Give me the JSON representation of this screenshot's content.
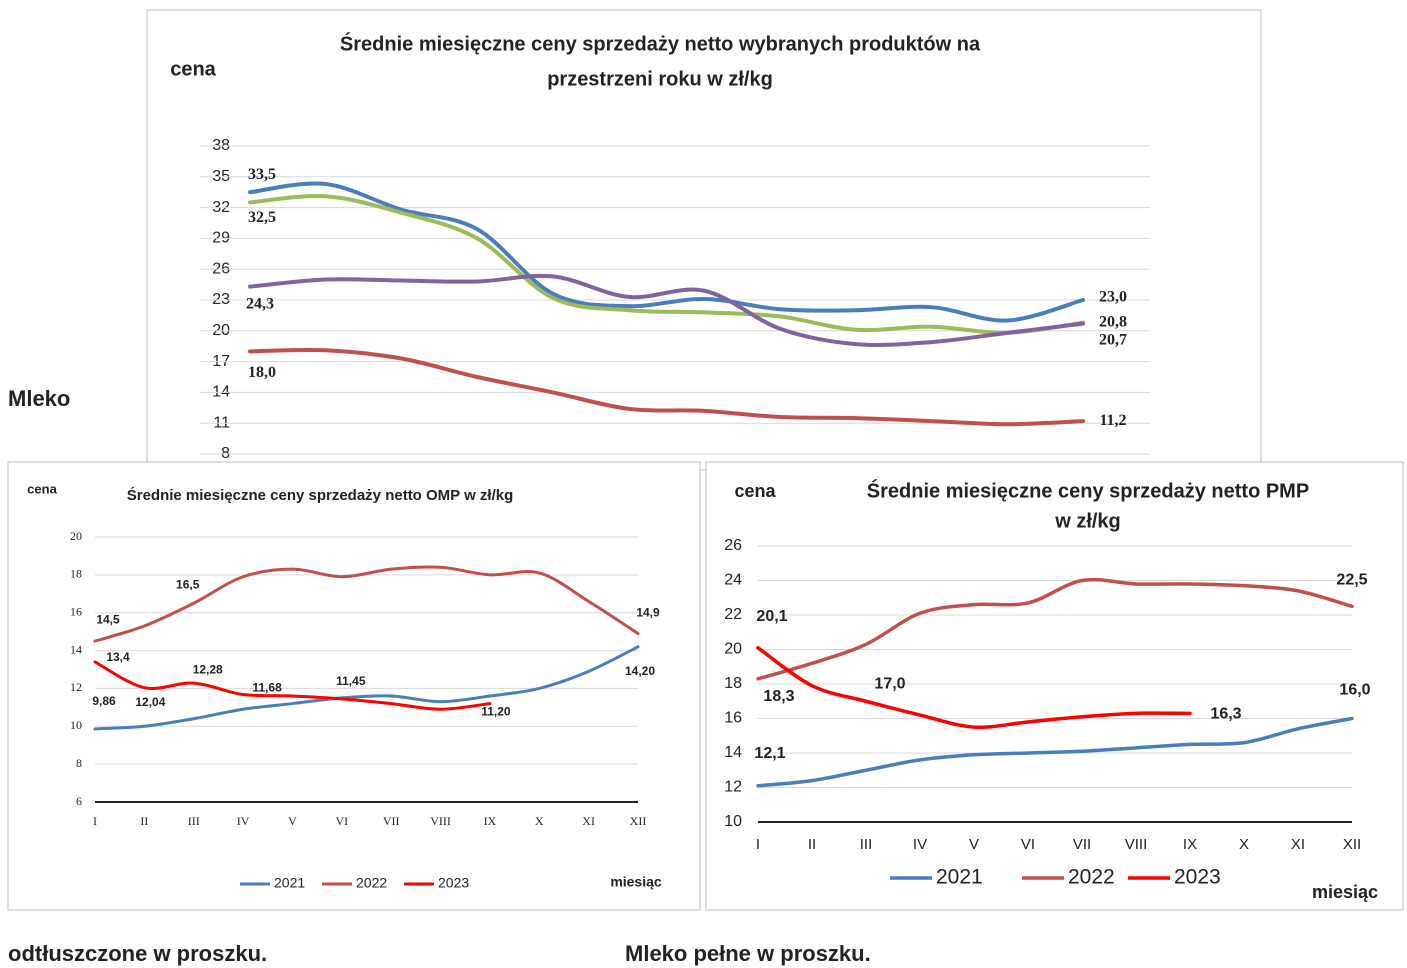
{
  "texts": {
    "left_label": "Mleko",
    "caption_left": "odtłuszczone w proszku.",
    "caption_right": "Mleko pełne w proszku."
  },
  "chart_data": [
    {
      "type": "line",
      "title": [
        "Średnie miesięczne ceny sprzedaży netto  wybranych produktów na",
        "przestrzeni roku      w zł/kg"
      ],
      "y_label": "cena",
      "categories": [
        null,
        null,
        null,
        null,
        null,
        null,
        null,
        null,
        null,
        null,
        null,
        null
      ],
      "ylim": [
        8,
        38
      ],
      "yticks": [
        8,
        11,
        14,
        17,
        20,
        23,
        26,
        29,
        32,
        35,
        38
      ],
      "grid": true,
      "series": [
        {
          "color": "#4a7ebb",
          "values": [
            33.5,
            34.3,
            31.8,
            29.9,
            23.6,
            22.4,
            23.1,
            22.1,
            22.0,
            22.3,
            21.0,
            23.0
          ],
          "value_labels": [
            "33,5",
            null,
            null,
            null,
            null,
            null,
            null,
            null,
            null,
            null,
            null,
            "23,0"
          ]
        },
        {
          "color": "#9bbb59",
          "values": [
            32.5,
            33.1,
            31.5,
            29.0,
            23.2,
            22.0,
            21.8,
            21.4,
            20.1,
            20.4,
            19.8,
            20.8
          ],
          "value_labels": [
            "32,5",
            null,
            null,
            null,
            null,
            null,
            null,
            null,
            null,
            null,
            null,
            "20,8"
          ]
        },
        {
          "color": "#8064a2",
          "values": [
            24.3,
            25.0,
            24.9,
            24.8,
            25.3,
            23.3,
            23.9,
            20.2,
            18.7,
            18.9,
            19.8,
            20.7
          ],
          "value_labels": [
            "24,3",
            null,
            null,
            null,
            null,
            null,
            null,
            null,
            null,
            null,
            null,
            "20,7"
          ]
        },
        {
          "color": "#c0504d",
          "values": [
            18.0,
            18.1,
            17.3,
            15.5,
            14.0,
            12.4,
            12.2,
            11.6,
            11.5,
            11.2,
            10.9,
            11.2
          ],
          "value_labels": [
            "18,0",
            null,
            null,
            null,
            null,
            null,
            null,
            null,
            null,
            null,
            null,
            "11,2"
          ]
        }
      ]
    },
    {
      "type": "line",
      "title": [
        "Średnie miesięczne ceny sprzedaży netto OMP w zł/kg"
      ],
      "y_label": "cena",
      "x_label": "miesiąc",
      "categories": [
        "I",
        "II",
        "III",
        "IV",
        "V",
        "VI",
        "VII",
        "VIII",
        "IX",
        "X",
        "XI",
        "XII"
      ],
      "ylim": [
        6,
        20
      ],
      "yticks": [
        6,
        8,
        10,
        12,
        14,
        16,
        18,
        20
      ],
      "grid": true,
      "legend": "bottom",
      "series": [
        {
          "name": "2021",
          "color": "#4a7ebb",
          "values": [
            9.86,
            10.0,
            10.4,
            10.9,
            11.2,
            11.5,
            11.6,
            11.3,
            11.6,
            12.0,
            12.9,
            14.2
          ],
          "value_labels": [
            "9,86",
            null,
            null,
            null,
            null,
            null,
            null,
            null,
            null,
            null,
            null,
            "14,20"
          ]
        },
        {
          "name": "2022",
          "color": "#c0504d",
          "values": [
            14.5,
            15.3,
            16.5,
            17.9,
            18.3,
            17.9,
            18.3,
            18.4,
            18.0,
            18.1,
            16.6,
            14.9
          ],
          "value_labels": [
            "14,5",
            null,
            "16,5",
            null,
            null,
            null,
            null,
            null,
            null,
            null,
            null,
            "14,9"
          ]
        },
        {
          "name": "2023",
          "color": "#ff0000",
          "values": [
            13.4,
            12.04,
            12.28,
            11.68,
            11.6,
            11.45,
            11.2,
            10.9,
            11.2,
            null,
            null,
            null
          ],
          "value_labels": [
            "13,4",
            "12,04",
            "12,28",
            "11,68",
            null,
            "11,45",
            null,
            null,
            "11,20",
            null,
            null,
            null
          ]
        }
      ]
    },
    {
      "type": "line",
      "title": [
        "Średnie miesięczne ceny sprzedaży netto PMP",
        "w zł/kg"
      ],
      "y_label": "cena",
      "x_label": "miesiąc",
      "categories": [
        "I",
        "II",
        "III",
        "IV",
        "V",
        "VI",
        "VII",
        "VIII",
        "IX",
        "X",
        "XI",
        "XII"
      ],
      "ylim": [
        10,
        26
      ],
      "yticks": [
        10,
        12,
        14,
        16,
        18,
        20,
        22,
        24,
        26
      ],
      "grid": true,
      "legend": "bottom",
      "series": [
        {
          "name": "2021",
          "color": "#4a7ebb",
          "values": [
            12.1,
            12.4,
            13.0,
            13.6,
            13.9,
            14.0,
            14.1,
            14.3,
            14.5,
            14.6,
            15.4,
            16.0
          ],
          "value_labels": [
            "12,1",
            null,
            null,
            null,
            null,
            null,
            null,
            null,
            null,
            null,
            null,
            "16,0"
          ]
        },
        {
          "name": "2022",
          "color": "#c0504d",
          "values": [
            18.3,
            19.2,
            20.3,
            22.1,
            22.6,
            22.7,
            24.0,
            23.8,
            23.8,
            23.7,
            23.4,
            22.5
          ],
          "value_labels": [
            "18,3",
            null,
            null,
            null,
            null,
            null,
            null,
            null,
            null,
            null,
            null,
            "22,5"
          ]
        },
        {
          "name": "2023",
          "color": "#ff0000",
          "values": [
            20.1,
            17.9,
            17.0,
            16.2,
            15.5,
            15.8,
            16.1,
            16.3,
            16.3,
            null,
            null,
            null
          ],
          "value_labels": [
            "20,1",
            null,
            "17,0",
            null,
            null,
            null,
            null,
            null,
            "16,3",
            null,
            null,
            null
          ]
        }
      ]
    }
  ]
}
